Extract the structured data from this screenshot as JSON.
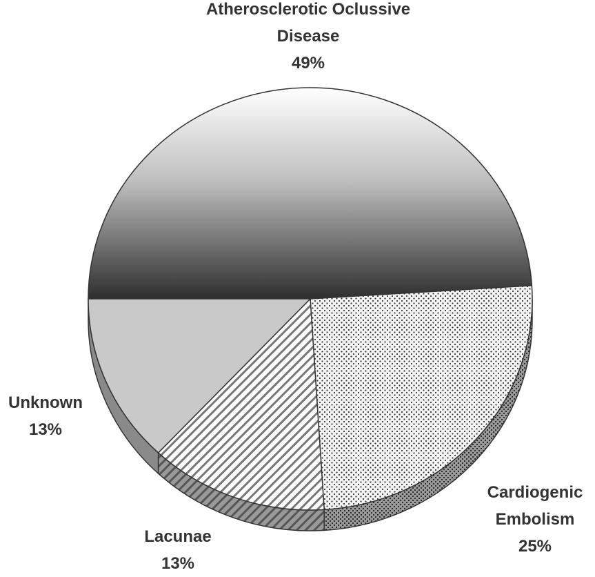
{
  "chart_data": {
    "type": "pie",
    "categories": [
      "Atherosclerotic Oclussive Disease",
      "Cardiogenic Embolism",
      "Lacunae",
      "Unknown"
    ],
    "values": [
      49,
      25,
      13,
      13
    ],
    "value_labels": [
      "49%",
      "25%",
      "13%",
      "13%"
    ]
  }
}
